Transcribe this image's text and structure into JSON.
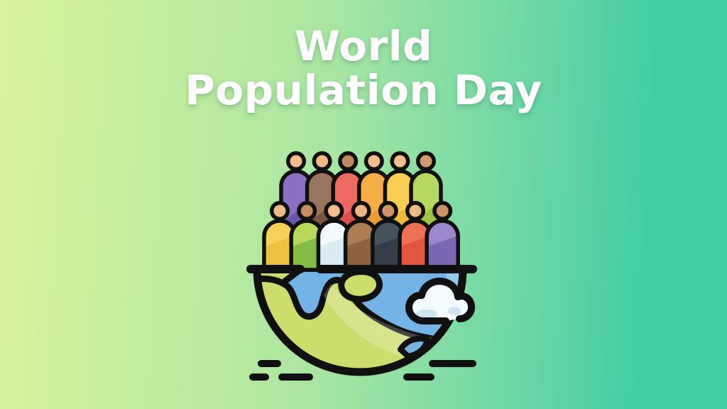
{
  "title": {
    "line1": "World",
    "line2": "Population Day",
    "color": "#ffffff"
  },
  "background": {
    "left": "#d8f39b",
    "mid": "#a9e6a2",
    "right": "#44cda4"
  },
  "illustration": {
    "name": "crowd-standing-on-half-globe",
    "colors": {
      "outline": "#101010",
      "ocean": "#74b3e5",
      "ocean_light": "#93c8ef",
      "land": "#cddd6b",
      "land_dark": "#a4c455",
      "cloud": "#f4fbff",
      "cloud_shade": "#cfe4f2"
    },
    "people": {
      "back_row": [
        {
          "body_light": "#8a70c2",
          "body_dark": "#6c56a8",
          "skin": "#f2bd8c"
        },
        {
          "body_light": "#9a755e",
          "body_dark": "#7b5844",
          "skin": "#f0b885"
        },
        {
          "body_light": "#ef6a5e",
          "body_dark": "#dd4f4a",
          "skin": "#c08a5f"
        },
        {
          "body_light": "#f5ae45",
          "body_dark": "#ea9b34",
          "skin": "#f2bd8c"
        },
        {
          "body_light": "#f7cd52",
          "body_dark": "#edba38",
          "skin": "#f2bd8c"
        },
        {
          "body_light": "#b5d85e",
          "body_dark": "#a0c348",
          "skin": "#d2996a"
        }
      ],
      "front_row": [
        {
          "body_light": "#f5d256",
          "body_dark": "#ecc13e",
          "skin": "#f0ba88"
        },
        {
          "body_light": "#b8d75c",
          "body_dark": "#82bd45",
          "skin": "#c58c5d"
        },
        {
          "body_light": "#f2fafd",
          "body_dark": "#d9ebf3",
          "skin": "#f2bd8c"
        },
        {
          "body_light": "#ab7e53",
          "body_dark": "#8d623e",
          "skin": "#eeb685"
        },
        {
          "body_light": "#46525c",
          "body_dark": "#343e48",
          "skin": "#cf9466"
        },
        {
          "body_light": "#f07055",
          "body_dark": "#e2553f",
          "skin": "#f0ba88"
        },
        {
          "body_light": "#9c87cd",
          "body_dark": "#7d66b4",
          "skin": "#cb9267"
        }
      ]
    }
  }
}
